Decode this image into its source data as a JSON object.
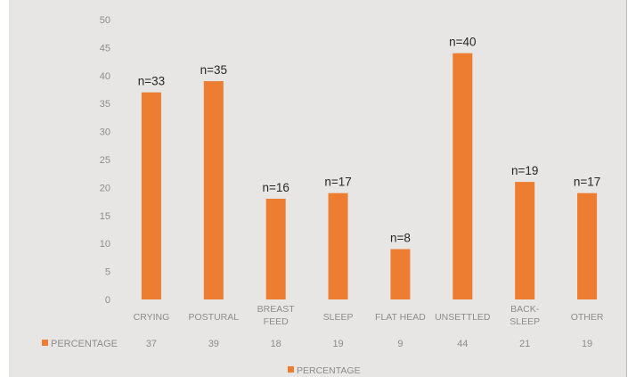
{
  "chart_data": {
    "type": "bar",
    "categories": [
      [
        "CRYING"
      ],
      [
        "POSTURAL"
      ],
      [
        "BREAST",
        "FEED"
      ],
      [
        "SLEEP"
      ],
      [
        "FLAT HEAD"
      ],
      [
        "UNSETTLED"
      ],
      [
        "BACK-",
        "SLEEP"
      ],
      [
        "OTHER"
      ]
    ],
    "series": [
      {
        "name": "PERCENTAGE",
        "values": [
          37,
          39,
          18,
          19,
          9,
          44,
          21,
          19
        ],
        "table_values": [
          "37",
          "39",
          "18",
          "19",
          "9",
          "44",
          "21",
          "19"
        ]
      }
    ],
    "data_labels": [
      "n=33",
      "n=35",
      "n=16",
      "n=17",
      "n=8",
      "n=40",
      "n=19",
      "n=17"
    ],
    "y_ticks": [
      "0",
      "5",
      "10",
      "15",
      "20",
      "25",
      "30",
      "35",
      "40",
      "45",
      "50"
    ],
    "ylim": [
      0,
      50
    ],
    "grid": false,
    "data_table": true,
    "legend_position": "bottom",
    "colors": {
      "bar": "#ED7D31",
      "background": "#E7E6E4",
      "text": "#8C8C8C",
      "label": "#262626"
    }
  }
}
